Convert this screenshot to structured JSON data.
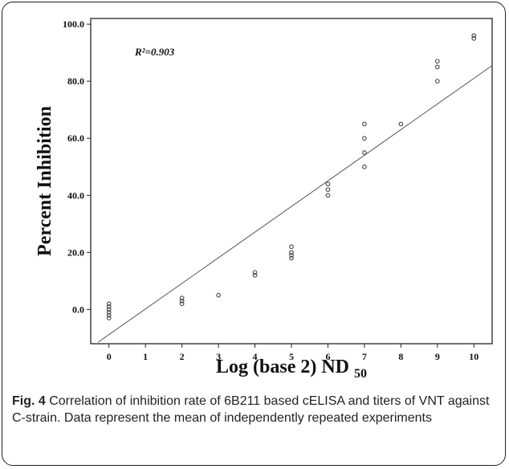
{
  "chart_data": {
    "type": "scatter",
    "annotation": "R²=0.903",
    "xlabel": "Log (base 2) ND",
    "xlabel_subscript": "50",
    "ylabel": "Percent Inhibition",
    "xlim": [
      -0.5,
      10.5
    ],
    "ylim": [
      -12,
      102
    ],
    "xticks": [
      "0",
      "1",
      "2",
      "3",
      "4",
      "5",
      "6",
      "7",
      "8",
      "9",
      "10"
    ],
    "yticks": [
      "0.0",
      "20.0",
      "40.0",
      "60.0",
      "80.0",
      "100.0"
    ],
    "grid": false,
    "legend": "none",
    "series": [
      {
        "points": [
          [
            0,
            2
          ],
          [
            0,
            1
          ],
          [
            0,
            0
          ],
          [
            0,
            -1
          ],
          [
            0,
            -2
          ],
          [
            0,
            -3
          ],
          [
            2,
            4
          ],
          [
            2,
            3
          ],
          [
            2,
            2
          ],
          [
            3,
            5
          ],
          [
            4,
            13
          ],
          [
            4,
            12
          ],
          [
            5,
            22
          ],
          [
            5,
            20
          ],
          [
            5,
            19
          ],
          [
            5,
            18
          ],
          [
            6,
            44
          ],
          [
            6,
            42
          ],
          [
            6,
            40
          ],
          [
            7,
            65
          ],
          [
            7,
            60
          ],
          [
            7,
            55
          ],
          [
            7,
            50
          ],
          [
            8,
            65
          ],
          [
            9,
            87
          ],
          [
            9,
            85
          ],
          [
            9,
            80
          ],
          [
            10,
            96
          ],
          [
            10,
            95
          ]
        ]
      }
    ],
    "regression_line": {
      "x": [
        -0.3,
        10.5
      ],
      "y": [
        -11.5,
        85.5
      ]
    },
    "marker_color": "#444444",
    "line_color": "#555555"
  },
  "caption": {
    "label": "Fig. 4",
    "text": " Correlation of inhibition rate of 6B211 based cELISA and titers of VNT against C-strain. Data represent the mean of independently repeated experiments"
  }
}
